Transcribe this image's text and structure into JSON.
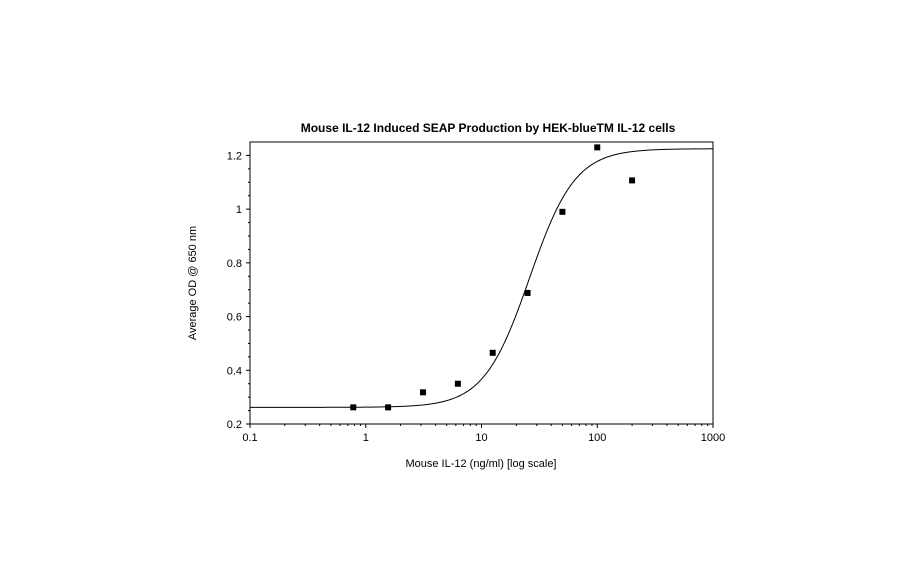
{
  "chart_data": {
    "type": "scatter",
    "title": "Mouse IL-12 Induced SEAP Production by HEK-blueTM IL-12 cells",
    "xlabel": "Mouse IL-12 (ng/ml) [log scale]",
    "ylabel": "Average OD @ 650 nm",
    "x_scale": "log",
    "xlim": [
      0.1,
      1000
    ],
    "ylim": [
      0.2,
      1.25
    ],
    "x_ticks": [
      0.1,
      1,
      10,
      100,
      1000
    ],
    "x_tick_labels": [
      "0.1",
      "1",
      "10",
      "100",
      "1000"
    ],
    "y_ticks": [
      0.2,
      0.4,
      0.6,
      0.8,
      1.0,
      1.2
    ],
    "y_tick_labels": [
      "0.2",
      "0.4",
      "0.6",
      "0.8",
      "1",
      "1.2"
    ],
    "grid": false,
    "legend": "none",
    "series": [
      {
        "marker": "square",
        "color": "#000000",
        "x": [
          0.78,
          1.56,
          3.125,
          6.25,
          12.5,
          25,
          50,
          100,
          200
        ],
        "y": [
          0.262,
          0.262,
          0.318,
          0.35,
          0.465,
          0.688,
          0.99,
          1.23,
          1.107
        ]
      }
    ],
    "fit": {
      "type": "four-parameter logistic",
      "bottom": 0.262,
      "top": 1.225,
      "ec50": 26,
      "hill": 2.2,
      "color": "#000000"
    }
  }
}
